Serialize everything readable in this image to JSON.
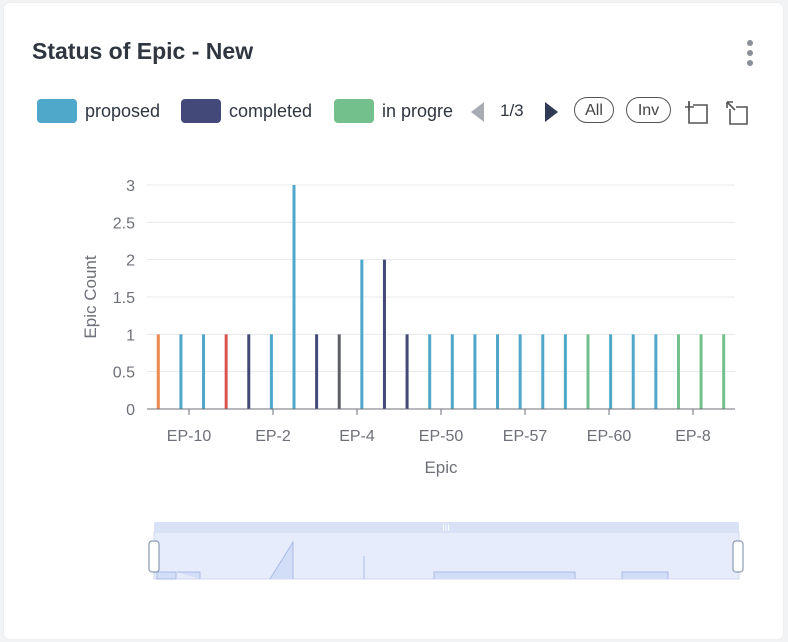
{
  "header": {
    "title": "Status of Epic - New",
    "more_icon": "more-vertical-icon"
  },
  "legend": {
    "items": [
      {
        "label": "proposed",
        "color": "#4fa8c9"
      },
      {
        "label": "completed",
        "color": "#434a7a"
      },
      {
        "label": "in progre",
        "color": "#73c08c"
      }
    ],
    "pager": {
      "text": "1/3",
      "prev_icon": "triangle-left-icon",
      "next_icon": "triangle-right-icon"
    },
    "all_label": "All",
    "inv_label": "Inv",
    "tools": [
      "zoom-select-icon",
      "zoom-reset-icon"
    ]
  },
  "chart_data": {
    "type": "bar",
    "xlabel": "Epic",
    "ylabel": "Epic Count",
    "ylim": [
      0,
      3
    ],
    "yticks": [
      "0",
      "0.5",
      "1",
      "1.5",
      "2",
      "2.5",
      "3"
    ],
    "xtick_labels": [
      "EP-10",
      "EP-2",
      "EP-4",
      "EP-50",
      "EP-57",
      "EP-60",
      "EP-8"
    ],
    "grid": true,
    "bars": [
      {
        "value": 1,
        "color": "#ee8a4f"
      },
      {
        "value": 1,
        "color": "#4fa8c9"
      },
      {
        "value": 1,
        "color": "#4fa8c9"
      },
      {
        "value": 1,
        "color": "#d9534f"
      },
      {
        "value": 1,
        "color": "#434a7a"
      },
      {
        "value": 1,
        "color": "#4fa8c9"
      },
      {
        "value": 3,
        "color": "#4fa8c9"
      },
      {
        "value": 1,
        "color": "#434a7a"
      },
      {
        "value": 1,
        "color": "#5c6066"
      },
      {
        "value": 2,
        "color": "#4fa8c9"
      },
      {
        "value": 2,
        "color": "#434a7a"
      },
      {
        "value": 1,
        "color": "#434a7a"
      },
      {
        "value": 1,
        "color": "#4fa8c9"
      },
      {
        "value": 1,
        "color": "#4fa8c9"
      },
      {
        "value": 1,
        "color": "#4fa8c9"
      },
      {
        "value": 1,
        "color": "#4fa8c9"
      },
      {
        "value": 1,
        "color": "#4fa8c9"
      },
      {
        "value": 1,
        "color": "#4fa8c9"
      },
      {
        "value": 1,
        "color": "#4fa8c9"
      },
      {
        "value": 1,
        "color": "#73c08c"
      },
      {
        "value": 1,
        "color": "#4fa8c9"
      },
      {
        "value": 1,
        "color": "#4fa8c9"
      },
      {
        "value": 1,
        "color": "#4fa8c9"
      },
      {
        "value": 1,
        "color": "#73c08c"
      },
      {
        "value": 1,
        "color": "#73c08c"
      },
      {
        "value": 1,
        "color": "#73c08c"
      }
    ],
    "data_zoom": {
      "start_percent": 0,
      "end_percent": 100
    }
  }
}
